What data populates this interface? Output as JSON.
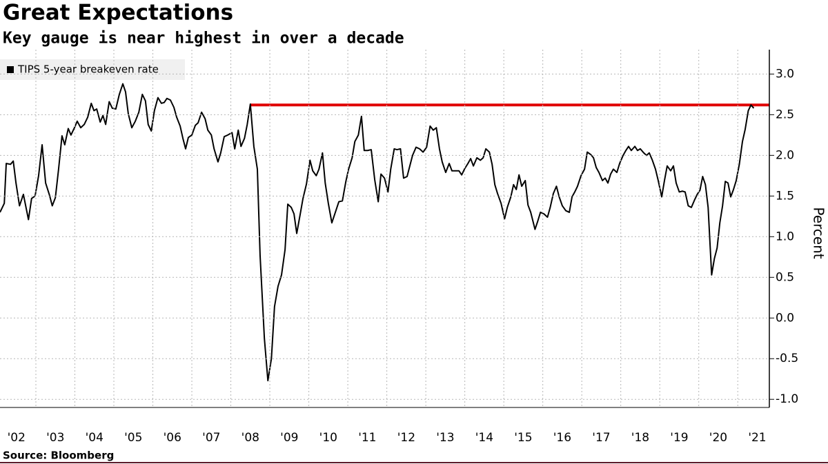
{
  "chart_data": {
    "type": "line",
    "title": "Great Expectations",
    "subtitle": "Key gauge is near highest in over a decade",
    "source": "Source: Bloomberg",
    "y_axis_label": "Percent",
    "xlim": [
      2002.08,
      2021.81
    ],
    "ylim": [
      -1.1,
      3.3
    ],
    "xticks": [
      {
        "value": 2002,
        "label": "'02"
      },
      {
        "value": 2003,
        "label": "'03"
      },
      {
        "value": 2004,
        "label": "'04"
      },
      {
        "value": 2005,
        "label": "'05"
      },
      {
        "value": 2006,
        "label": "'06"
      },
      {
        "value": 2007,
        "label": "'07"
      },
      {
        "value": 2008,
        "label": "'08"
      },
      {
        "value": 2009,
        "label": "'09"
      },
      {
        "value": 2010,
        "label": "'10"
      },
      {
        "value": 2011,
        "label": "'11"
      },
      {
        "value": 2012,
        "label": "'12"
      },
      {
        "value": 2013,
        "label": "'13"
      },
      {
        "value": 2014,
        "label": "'14"
      },
      {
        "value": 2015,
        "label": "'15"
      },
      {
        "value": 2016,
        "label": "'16"
      },
      {
        "value": 2017,
        "label": "'17"
      },
      {
        "value": 2018,
        "label": "'18"
      },
      {
        "value": 2019,
        "label": "'19"
      },
      {
        "value": 2020,
        "label": "'20"
      },
      {
        "value": 2021,
        "label": "'21"
      }
    ],
    "yticks": [
      {
        "value": 3,
        "label": "3.0"
      },
      2.5,
      {
        "value": 2,
        "label": "2.0"
      },
      1.5,
      {
        "value": 1,
        "label": "1.0"
      },
      0.5,
      {
        "value": 0,
        "label": "0.0"
      },
      -0.5,
      {
        "value": -1,
        "label": "-1.0"
      }
    ],
    "grid": true,
    "legend": "top-left",
    "reference_line": {
      "value": 2.62,
      "x_start": 2008.5,
      "color": "#e00000"
    },
    "x": [
      2002.08,
      2002.19,
      2002.24,
      2002.35,
      2002.42,
      2002.49,
      2002.58,
      2002.68,
      2002.81,
      2002.89,
      2002.98,
      2003.07,
      2003.16,
      2003.25,
      2003.35,
      2003.42,
      2003.5,
      2003.58,
      2003.67,
      2003.74,
      2003.83,
      2003.9,
      2003.99,
      2004.06,
      2004.15,
      2004.24,
      2004.33,
      2004.42,
      2004.49,
      2004.56,
      2004.65,
      2004.72,
      2004.79,
      2004.88,
      2004.96,
      2005.05,
      2005.14,
      2005.23,
      2005.3,
      2005.37,
      2005.46,
      2005.55,
      2005.64,
      2005.73,
      2005.81,
      2005.88,
      2005.96,
      2006.04,
      2006.13,
      2006.22,
      2006.29,
      2006.36,
      2006.45,
      2006.54,
      2006.61,
      2006.7,
      2006.77,
      2006.84,
      2006.91,
      2007.0,
      2007.09,
      2007.16,
      2007.25,
      2007.34,
      2007.41,
      2007.5,
      2007.57,
      2007.67,
      2007.74,
      2007.83,
      2007.92,
      2008.03,
      2008.1,
      2008.19,
      2008.26,
      2008.35,
      2008.42,
      2008.5,
      2008.59,
      2008.68,
      2008.75,
      2008.86,
      2008.95,
      2009.04,
      2009.12,
      2009.21,
      2009.3,
      2009.39,
      2009.46,
      2009.55,
      2009.62,
      2009.69,
      2009.78,
      2009.85,
      2009.94,
      2010.03,
      2010.1,
      2010.19,
      2010.26,
      2010.35,
      2010.42,
      2010.5,
      2010.59,
      2010.68,
      2010.77,
      2010.86,
      2010.95,
      2011.02,
      2011.11,
      2011.18,
      2011.27,
      2011.35,
      2011.42,
      2011.51,
      2011.6,
      2011.69,
      2011.78,
      2011.85,
      2011.94,
      2012.03,
      2012.1,
      2012.19,
      2012.26,
      2012.35,
      2012.43,
      2012.52,
      2012.59,
      2012.66,
      2012.75,
      2012.84,
      2012.93,
      2013.02,
      2013.11,
      2013.19,
      2013.27,
      2013.35,
      2013.42,
      2013.51,
      2013.6,
      2013.67,
      2013.76,
      2013.85,
      2013.92,
      2013.99,
      2014.08,
      2014.15,
      2014.22,
      2014.31,
      2014.4,
      2014.47,
      2014.54,
      2014.63,
      2014.7,
      2014.77,
      2014.84,
      2014.93,
      2015.02,
      2015.09,
      2015.18,
      2015.25,
      2015.32,
      2015.39,
      2015.46,
      2015.55,
      2015.62,
      2015.69,
      2015.8,
      2015.87,
      2015.94,
      2016.03,
      2016.12,
      2016.19,
      2016.27,
      2016.35,
      2016.42,
      2016.5,
      2016.59,
      2016.68,
      2016.75,
      2016.82,
      2016.89,
      2016.98,
      2017.07,
      2017.14,
      2017.23,
      2017.3,
      2017.37,
      2017.44,
      2017.53,
      2017.6,
      2017.67,
      2017.74,
      2017.81,
      2017.9,
      2017.97,
      2018.06,
      2018.13,
      2018.2,
      2018.27,
      2018.36,
      2018.43,
      2018.5,
      2018.59,
      2018.66,
      2018.73,
      2018.81,
      2018.89,
      2018.96,
      2019.05,
      2019.12,
      2019.19,
      2019.28,
      2019.35,
      2019.42,
      2019.5,
      2019.58,
      2019.65,
      2019.73,
      2019.81,
      2019.89,
      2019.96,
      2020.03,
      2020.1,
      2020.17,
      2020.24,
      2020.33,
      2020.4,
      2020.47,
      2020.54,
      2020.61,
      2020.68,
      2020.75,
      2020.82,
      2020.89,
      2020.96,
      2021.04,
      2021.12,
      2021.19,
      2021.27,
      2021.34,
      2021.41
    ],
    "series": [
      {
        "name": "TIPS 5-year breakeven rate",
        "color": "#000000",
        "values": [
          1.3,
          1.41,
          1.9,
          1.89,
          1.93,
          1.66,
          1.38,
          1.52,
          1.21,
          1.47,
          1.5,
          1.75,
          2.13,
          1.66,
          1.51,
          1.38,
          1.48,
          1.82,
          2.24,
          2.13,
          2.33,
          2.25,
          2.34,
          2.42,
          2.34,
          2.38,
          2.47,
          2.64,
          2.55,
          2.57,
          2.41,
          2.49,
          2.38,
          2.66,
          2.58,
          2.57,
          2.75,
          2.88,
          2.78,
          2.51,
          2.34,
          2.42,
          2.53,
          2.75,
          2.67,
          2.38,
          2.3,
          2.55,
          2.71,
          2.64,
          2.65,
          2.7,
          2.68,
          2.59,
          2.47,
          2.36,
          2.21,
          2.08,
          2.22,
          2.25,
          2.37,
          2.4,
          2.53,
          2.45,
          2.31,
          2.25,
          2.08,
          1.92,
          2.03,
          2.23,
          2.25,
          2.28,
          2.08,
          2.31,
          2.11,
          2.21,
          2.38,
          2.63,
          2.11,
          1.83,
          0.77,
          -0.25,
          -0.77,
          -0.5,
          0.14,
          0.39,
          0.53,
          0.84,
          1.4,
          1.36,
          1.28,
          1.04,
          1.28,
          1.47,
          1.65,
          1.94,
          1.81,
          1.75,
          1.83,
          2.03,
          1.66,
          1.41,
          1.17,
          1.3,
          1.43,
          1.44,
          1.68,
          1.83,
          1.97,
          2.17,
          2.25,
          2.48,
          2.06,
          2.06,
          2.07,
          1.7,
          1.43,
          1.77,
          1.72,
          1.55,
          1.83,
          2.08,
          2.07,
          2.08,
          1.72,
          1.74,
          1.87,
          2.0,
          2.1,
          2.08,
          2.04,
          2.1,
          2.36,
          2.31,
          2.34,
          2.08,
          1.92,
          1.79,
          1.9,
          1.81,
          1.81,
          1.81,
          1.76,
          1.83,
          1.9,
          1.96,
          1.87,
          1.97,
          1.94,
          1.97,
          2.08,
          2.04,
          1.89,
          1.64,
          1.53,
          1.41,
          1.22,
          1.36,
          1.49,
          1.64,
          1.58,
          1.76,
          1.62,
          1.69,
          1.39,
          1.3,
          1.09,
          1.19,
          1.3,
          1.28,
          1.24,
          1.36,
          1.53,
          1.62,
          1.49,
          1.38,
          1.32,
          1.3,
          1.49,
          1.55,
          1.62,
          1.75,
          1.83,
          2.04,
          2.01,
          1.97,
          1.85,
          1.79,
          1.69,
          1.72,
          1.66,
          1.77,
          1.83,
          1.79,
          1.9,
          2.0,
          2.06,
          2.11,
          2.06,
          2.11,
          2.06,
          2.08,
          2.03,
          2.0,
          2.03,
          1.94,
          1.83,
          1.69,
          1.49,
          1.69,
          1.87,
          1.81,
          1.87,
          1.66,
          1.55,
          1.56,
          1.55,
          1.38,
          1.36,
          1.45,
          1.52,
          1.57,
          1.74,
          1.64,
          1.36,
          0.53,
          0.73,
          0.86,
          1.17,
          1.38,
          1.68,
          1.66,
          1.49,
          1.58,
          1.69,
          1.89,
          2.17,
          2.32,
          2.55,
          2.62,
          2.58
        ]
      }
    ]
  }
}
